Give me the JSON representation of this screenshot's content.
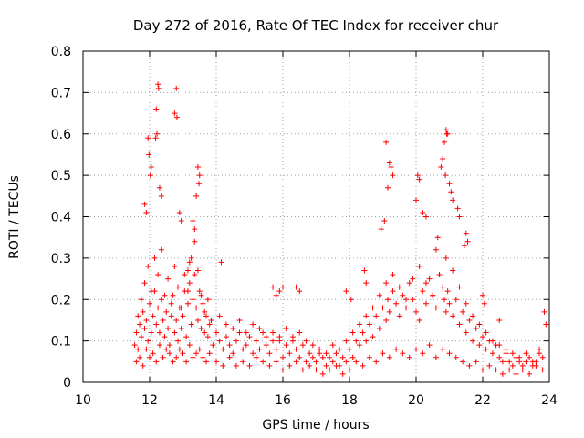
{
  "chart_data": {
    "type": "scatter",
    "title": "Day 272 of 2016, Rate Of TEC Index for receiver chur",
    "xlabel": "GPS time / hours",
    "ylabel": "ROTI / TECUs",
    "xlim": [
      10,
      24
    ],
    "ylim": [
      0,
      0.8
    ],
    "xticks": [
      10,
      12,
      14,
      16,
      18,
      20,
      22,
      24
    ],
    "xtick_labels": [
      "10",
      "12",
      "14",
      "16",
      "18",
      "20",
      "22",
      "24"
    ],
    "yticks": [
      0,
      0.1,
      0.2,
      0.3,
      0.4,
      0.5,
      0.6,
      0.7,
      0.8
    ],
    "ytick_labels": [
      "0",
      "0.1",
      "0.2",
      "0.3",
      "0.4",
      "0.5",
      "0.6",
      "0.7",
      "0.8"
    ],
    "grid": true,
    "marker": "+",
    "color": "#ff0000",
    "series": [
      {
        "name": "ROTI",
        "x": [
          11.55,
          11.6,
          11.65,
          11.7,
          11.75,
          11.8,
          11.85,
          11.9,
          11.95,
          12.0,
          12.05,
          12.1,
          12.15,
          12.2,
          12.25,
          12.3,
          12.35,
          12.4,
          12.45,
          12.5,
          12.55,
          12.6,
          12.65,
          12.7,
          12.75,
          12.8,
          12.85,
          12.9,
          12.95,
          13.0,
          13.05,
          13.1,
          13.15,
          13.2,
          13.25,
          13.3,
          13.35,
          13.4,
          13.45,
          13.5,
          13.55,
          13.6,
          13.65,
          13.7,
          13.75,
          13.8,
          13.9,
          14.0,
          14.1,
          14.2,
          14.3,
          14.4,
          14.5,
          14.6,
          14.7,
          14.8,
          14.9,
          15.0,
          15.1,
          15.2,
          15.3,
          15.4,
          15.5,
          15.6,
          15.7,
          15.8,
          15.9,
          16.0,
          16.1,
          16.2,
          16.3,
          16.4,
          16.5,
          16.6,
          16.7,
          16.8,
          16.9,
          17.0,
          17.1,
          17.2,
          17.3,
          17.4,
          17.5,
          17.6,
          17.7,
          17.8,
          17.9,
          18.0,
          18.1,
          18.2,
          18.3,
          18.4,
          18.5,
          18.6,
          18.7,
          18.8,
          18.9,
          19.0,
          19.1,
          19.15,
          19.2,
          19.3,
          19.4,
          19.5,
          19.6,
          19.7,
          19.8,
          19.9,
          20.0,
          20.1,
          20.2,
          20.3,
          20.4,
          20.5,
          20.6,
          20.7,
          20.8,
          20.85,
          20.9,
          20.95,
          21.0,
          21.1,
          21.2,
          21.3,
          21.4,
          21.5,
          21.6,
          21.7,
          21.8,
          21.9,
          22.0,
          22.1,
          22.2,
          22.3,
          22.4,
          22.5,
          22.6,
          22.7,
          22.8,
          22.9,
          23.0,
          23.1,
          23.2,
          23.3,
          23.4,
          23.5,
          23.6,
          23.7,
          23.8,
          11.6,
          11.7,
          11.8,
          11.9,
          12.0,
          12.1,
          12.2,
          12.3,
          12.4,
          12.5,
          12.6,
          12.7,
          12.8,
          12.9,
          13.0,
          13.1,
          13.2,
          13.3,
          13.4,
          13.5,
          13.6,
          13.7,
          13.8,
          14.0,
          14.2,
          14.4,
          14.6,
          14.8,
          15.0,
          15.2,
          15.4,
          15.6,
          15.8,
          16.0,
          16.2,
          16.4,
          16.6,
          16.8,
          17.0,
          17.2,
          17.4,
          17.6,
          17.8,
          18.0,
          18.2,
          18.4,
          18.6,
          18.8,
          19.0,
          19.2,
          19.4,
          19.6,
          19.8,
          20.0,
          20.2,
          20.4,
          20.6,
          20.8,
          21.0,
          21.2,
          21.4,
          21.6,
          21.8,
          22.0,
          22.2,
          22.4,
          22.6,
          22.8,
          23.0,
          23.2,
          23.4,
          23.6,
          23.8,
          11.65,
          11.75,
          11.85,
          11.95,
          12.05,
          12.15,
          12.25,
          12.35,
          12.45,
          12.55,
          12.65,
          12.75,
          12.85,
          12.95,
          13.05,
          13.15,
          13.25,
          13.35,
          13.45,
          13.55,
          13.65,
          13.75,
          13.85,
          14.1,
          14.3,
          14.5,
          14.7,
          14.9,
          15.1,
          15.3,
          15.5,
          15.7,
          15.9,
          16.1,
          16.3,
          16.5,
          16.7,
          16.9,
          17.1,
          17.3,
          17.5,
          17.7,
          17.9,
          18.1,
          18.3,
          18.5,
          18.7,
          18.9,
          19.1,
          19.3,
          19.5,
          19.7,
          19.9,
          20.1,
          20.3,
          20.5,
          20.7,
          20.9,
          21.1,
          21.3,
          21.5,
          21.7,
          21.9,
          22.1,
          22.3,
          22.5,
          22.7,
          22.9,
          23.1,
          23.3,
          23.5,
          23.7,
          12.25,
          12.27,
          12.2,
          12.8,
          12.75,
          12.82,
          12.22,
          12.18,
          13.45,
          13.5,
          13.48,
          11.95,
          11.98,
          12.05,
          12.02,
          11.85,
          11.9,
          12.3,
          12.35,
          12.9,
          12.95,
          13.3,
          13.35,
          13.4,
          14.15,
          19.1,
          19.2,
          19.25,
          19.3,
          19.15,
          18.95,
          19.05,
          20.05,
          20.1,
          20.0,
          20.2,
          20.3,
          20.9,
          20.92,
          20.95,
          20.85,
          20.8,
          20.75,
          20.88,
          21.0,
          21.05,
          21.1,
          21.25,
          21.3,
          21.5,
          21.55,
          21.45,
          20.65,
          20.6,
          16.0,
          15.9,
          15.7,
          15.8,
          16.4,
          16.5,
          17.9,
          18.05,
          18.5,
          18.45,
          22.0,
          22.05,
          22.5,
          23.85,
          23.9,
          13.15,
          13.2
        ],
        "y": [
          0.09,
          0.12,
          0.08,
          0.14,
          0.11,
          0.17,
          0.13,
          0.15,
          0.1,
          0.19,
          0.12,
          0.16,
          0.22,
          0.14,
          0.18,
          0.12,
          0.2,
          0.15,
          0.11,
          0.17,
          0.13,
          0.09,
          0.16,
          0.21,
          0.12,
          0.15,
          0.1,
          0.18,
          0.13,
          0.16,
          0.22,
          0.11,
          0.19,
          0.24,
          0.14,
          0.2,
          0.26,
          0.18,
          0.15,
          0.22,
          0.13,
          0.19,
          0.12,
          0.16,
          0.11,
          0.14,
          0.09,
          0.12,
          0.1,
          0.08,
          0.11,
          0.09,
          0.07,
          0.1,
          0.12,
          0.08,
          0.09,
          0.11,
          0.07,
          0.1,
          0.08,
          0.12,
          0.09,
          0.07,
          0.1,
          0.08,
          0.11,
          0.06,
          0.09,
          0.07,
          0.1,
          0.08,
          0.06,
          0.09,
          0.05,
          0.07,
          0.06,
          0.05,
          0.07,
          0.06,
          0.04,
          0.06,
          0.05,
          0.07,
          0.04,
          0.06,
          0.05,
          0.08,
          0.06,
          0.1,
          0.09,
          0.12,
          0.1,
          0.14,
          0.11,
          0.16,
          0.13,
          0.18,
          0.15,
          0.2,
          0.17,
          0.22,
          0.19,
          0.16,
          0.21,
          0.18,
          0.24,
          0.2,
          0.17,
          0.15,
          0.22,
          0.19,
          0.25,
          0.21,
          0.18,
          0.26,
          0.23,
          0.2,
          0.17,
          0.22,
          0.19,
          0.16,
          0.2,
          0.14,
          0.17,
          0.12,
          0.15,
          0.1,
          0.13,
          0.09,
          0.11,
          0.08,
          0.1,
          0.07,
          0.09,
          0.06,
          0.05,
          0.07,
          0.05,
          0.04,
          0.06,
          0.05,
          0.04,
          0.05,
          0.06,
          0.04,
          0.05,
          0.07,
          0.06,
          0.05,
          0.06,
          0.04,
          0.08,
          0.06,
          0.07,
          0.05,
          0.09,
          0.06,
          0.08,
          0.07,
          0.05,
          0.06,
          0.08,
          0.07,
          0.05,
          0.09,
          0.06,
          0.07,
          0.08,
          0.06,
          0.05,
          0.07,
          0.05,
          0.04,
          0.06,
          0.04,
          0.05,
          0.04,
          0.06,
          0.05,
          0.04,
          0.05,
          0.03,
          0.04,
          0.05,
          0.03,
          0.04,
          0.03,
          0.02,
          0.03,
          0.04,
          0.02,
          0.03,
          0.05,
          0.04,
          0.06,
          0.05,
          0.07,
          0.06,
          0.08,
          0.07,
          0.06,
          0.08,
          0.07,
          0.09,
          0.06,
          0.08,
          0.07,
          0.06,
          0.05,
          0.04,
          0.05,
          0.03,
          0.04,
          0.03,
          0.02,
          0.03,
          0.02,
          0.03,
          0.02,
          0.04,
          0.03,
          0.16,
          0.2,
          0.24,
          0.28,
          0.22,
          0.3,
          0.26,
          0.32,
          0.21,
          0.25,
          0.19,
          0.28,
          0.23,
          0.18,
          0.26,
          0.22,
          0.3,
          0.34,
          0.27,
          0.21,
          0.17,
          0.2,
          0.15,
          0.16,
          0.14,
          0.13,
          0.15,
          0.12,
          0.14,
          0.13,
          0.11,
          0.12,
          0.1,
          0.13,
          0.11,
          0.12,
          0.1,
          0.09,
          0.08,
          0.07,
          0.09,
          0.08,
          0.1,
          0.12,
          0.14,
          0.16,
          0.18,
          0.21,
          0.24,
          0.26,
          0.23,
          0.2,
          0.25,
          0.28,
          0.24,
          0.21,
          0.26,
          0.3,
          0.27,
          0.23,
          0.19,
          0.16,
          0.14,
          0.12,
          0.1,
          0.09,
          0.08,
          0.07,
          0.06,
          0.07,
          0.05,
          0.08,
          0.72,
          0.71,
          0.66,
          0.71,
          0.65,
          0.64,
          0.6,
          0.59,
          0.52,
          0.5,
          0.48,
          0.59,
          0.55,
          0.52,
          0.5,
          0.43,
          0.41,
          0.47,
          0.45,
          0.41,
          0.39,
          0.39,
          0.37,
          0.45,
          0.29,
          0.58,
          0.53,
          0.52,
          0.5,
          0.47,
          0.37,
          0.39,
          0.5,
          0.49,
          0.44,
          0.41,
          0.4,
          0.61,
          0.6,
          0.6,
          0.58,
          0.54,
          0.52,
          0.5,
          0.48,
          0.46,
          0.44,
          0.42,
          0.4,
          0.36,
          0.34,
          0.33,
          0.35,
          0.32,
          0.23,
          0.22,
          0.23,
          0.21,
          0.23,
          0.22,
          0.22,
          0.2,
          0.24,
          0.27,
          0.21,
          0.19,
          0.15,
          0.17,
          0.14,
          0.27,
          0.29
        ]
      }
    ]
  }
}
